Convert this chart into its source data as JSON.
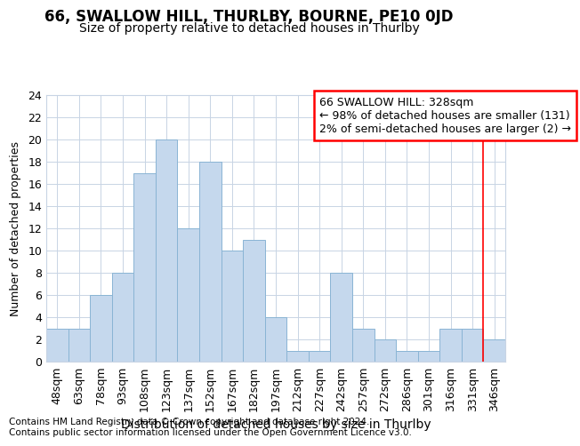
{
  "title": "66, SWALLOW HILL, THURLBY, BOURNE, PE10 0JD",
  "subtitle": "Size of property relative to detached houses in Thurlby",
  "xlabel": "Distribution of detached houses by size in Thurlby",
  "ylabel": "Number of detached properties",
  "footnote1": "Contains HM Land Registry data © Crown copyright and database right 2024.",
  "footnote2": "Contains public sector information licensed under the Open Government Licence v3.0.",
  "categories": [
    "48sqm",
    "63sqm",
    "78sqm",
    "93sqm",
    "108sqm",
    "123sqm",
    "137sqm",
    "152sqm",
    "167sqm",
    "182sqm",
    "197sqm",
    "212sqm",
    "227sqm",
    "242sqm",
    "257sqm",
    "272sqm",
    "286sqm",
    "301sqm",
    "316sqm",
    "331sqm",
    "346sqm"
  ],
  "values": [
    3,
    3,
    6,
    8,
    17,
    20,
    12,
    18,
    10,
    11,
    4,
    1,
    1,
    8,
    3,
    2,
    1,
    1,
    3,
    3,
    2
  ],
  "bar_color": "#c5d8ed",
  "bar_edge_color": "#8ab4d4",
  "vline_x": 19.5,
  "vline_color": "red",
  "annotation_text": "66 SWALLOW HILL: 328sqm\n← 98% of detached houses are smaller (131)\n2% of semi-detached houses are larger (2) →",
  "ylim": [
    0,
    24
  ],
  "yticks": [
    0,
    2,
    4,
    6,
    8,
    10,
    12,
    14,
    16,
    18,
    20,
    22,
    24
  ],
  "grid_color": "#c8d4e4",
  "title_fontsize": 12,
  "subtitle_fontsize": 10,
  "xlabel_fontsize": 10,
  "ylabel_fontsize": 9,
  "tick_fontsize": 9,
  "annot_fontsize": 9,
  "footnote_fontsize": 7.5
}
